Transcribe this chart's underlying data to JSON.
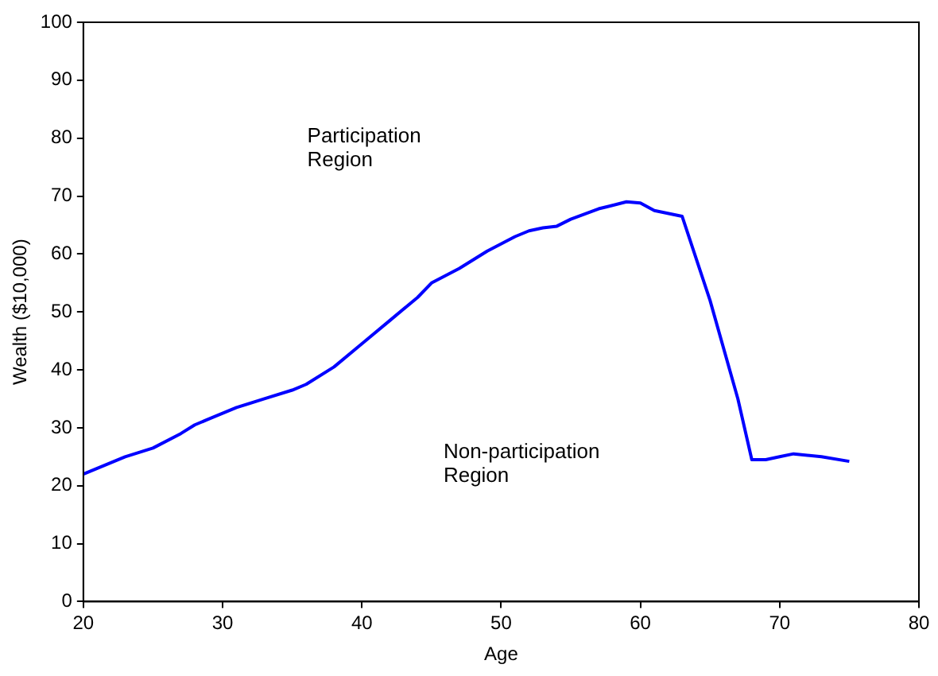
{
  "chart_data": {
    "type": "line",
    "xlabel": "Age",
    "ylabel": "Wealth ($10,000)",
    "x": [
      20,
      22,
      23,
      25,
      27,
      28,
      29,
      31,
      33,
      35,
      36,
      38,
      40,
      42,
      44,
      45,
      47,
      49,
      51,
      52,
      53,
      54,
      55,
      57,
      59,
      60,
      61,
      63,
      65,
      67,
      68,
      69,
      70,
      71,
      73,
      75
    ],
    "series": [
      {
        "color": "#0000ff",
        "values": [
          22,
          24,
          25,
          26.5,
          29,
          30.5,
          31.5,
          33.5,
          35,
          36.5,
          37.5,
          40.5,
          44.5,
          48.5,
          52.5,
          55,
          57.5,
          60.5,
          63,
          64,
          64.5,
          64.8,
          66,
          67.8,
          69,
          68.8,
          67.5,
          66.5,
          52,
          35,
          24.5,
          24.5,
          25,
          25.5,
          25,
          24.2
        ]
      }
    ],
    "xlim": [
      20,
      80
    ],
    "xticks": [
      20,
      30,
      40,
      50,
      60,
      70,
      80
    ],
    "ylim": [
      0,
      100
    ],
    "yticks": [
      0,
      10,
      20,
      30,
      40,
      50,
      60,
      70,
      80,
      90,
      100
    ],
    "grid": false,
    "legend": false,
    "marker": "none",
    "line_style": "solid",
    "annotations": [
      "Participation\nRegion",
      "Non-participation\nRegion"
    ]
  }
}
